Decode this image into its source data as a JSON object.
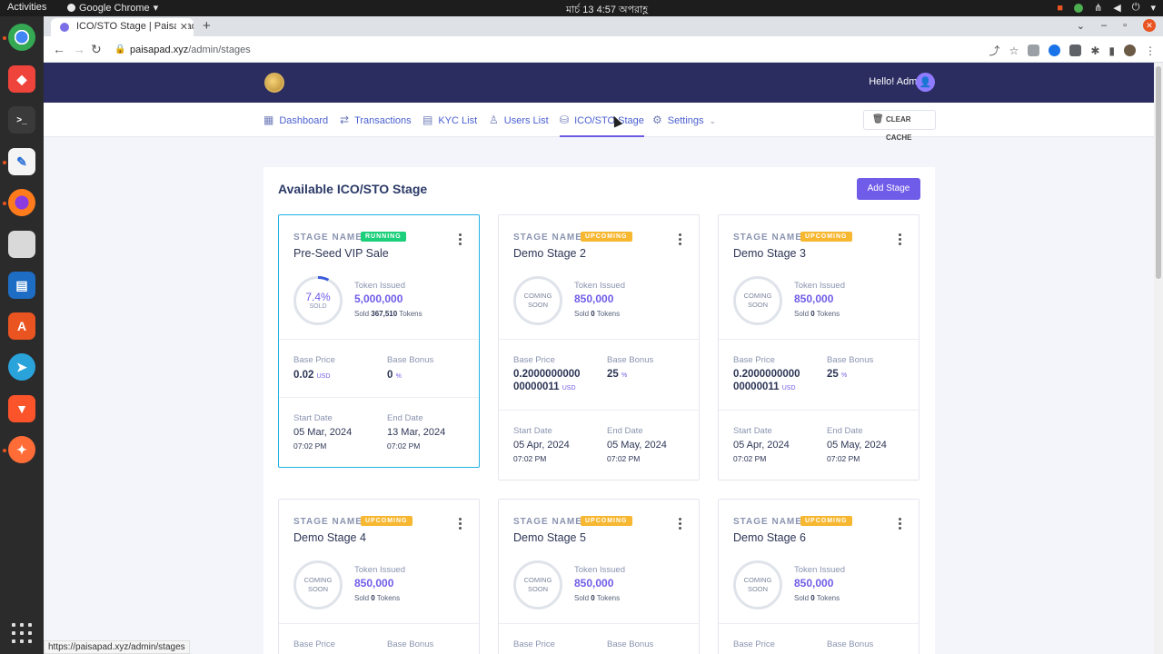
{
  "os": {
    "activities": "Activities",
    "app_name": "Google Chrome",
    "clock": "মার্চ 13  4:57 অপরাহ্ণ"
  },
  "browser": {
    "tab_title": "ICO/STO Stage | PaisaPad",
    "url_host": "paisapad.xyz",
    "url_path": "/admin/stages",
    "status_url": "https://paisapad.xyz/admin/stages"
  },
  "header": {
    "greeting": "Hello! Admin"
  },
  "menu": {
    "items": [
      {
        "label": "Dashboard",
        "icon": "grid-icon"
      },
      {
        "label": "Transactions",
        "icon": "exchange-icon"
      },
      {
        "label": "KYC List",
        "icon": "document-icon"
      },
      {
        "label": "Users List",
        "icon": "user-icon"
      },
      {
        "label": "ICO/STO Stage",
        "icon": "coins-icon",
        "active": true
      },
      {
        "label": "Settings",
        "icon": "gear-icon"
      }
    ],
    "clear_cache": "CLEAR CACHE"
  },
  "panel": {
    "title": "Available ICO/STO Stage",
    "add_button": "Add Stage",
    "stage_label": "STAGE NAME",
    "token_issued_label": "Token Issued",
    "base_price_label": "Base Price",
    "base_bonus_label": "Base Bonus",
    "start_date_label": "Start Date",
    "end_date_label": "End Date"
  },
  "stages": [
    {
      "name": "Pre-Seed VIP Sale",
      "status": "RUNNING",
      "sold_pct": "7.4%",
      "sold_word": "SOLD",
      "sold_fraction": 0.074,
      "token_issued": "5,000,000",
      "sold_prefix": "Sold",
      "sold_tokens": "367,510",
      "sold_suffix": "Tokens",
      "base_price": "0.02",
      "base_price_unit": "USD",
      "base_bonus": "0",
      "base_bonus_unit": "%",
      "start_date": "05 Mar, 2024",
      "start_time": "07:02 PM",
      "end_date": "13 Mar, 2024",
      "end_time": "07:02 PM"
    },
    {
      "name": "Demo Stage 2",
      "status": "UPCOMING",
      "soon_1": "COMING",
      "soon_2": "SOON",
      "token_issued": "850,000",
      "sold_prefix": "Sold",
      "sold_tokens": "0",
      "sold_suffix": "Tokens",
      "base_price_1": "0.2000000000",
      "base_price_2": "00000011",
      "base_price_unit": "USD",
      "base_bonus": "25",
      "base_bonus_unit": "%",
      "start_date": "05 Apr, 2024",
      "start_time": "07:02 PM",
      "end_date": "05 May, 2024",
      "end_time": "07:02 PM"
    },
    {
      "name": "Demo Stage 3",
      "status": "UPCOMING",
      "soon_1": "COMING",
      "soon_2": "SOON",
      "token_issued": "850,000",
      "sold_prefix": "Sold",
      "sold_tokens": "0",
      "sold_suffix": "Tokens",
      "base_price_1": "0.2000000000",
      "base_price_2": "00000011",
      "base_price_unit": "USD",
      "base_bonus": "25",
      "base_bonus_unit": "%",
      "start_date": "05 Apr, 2024",
      "start_time": "07:02 PM",
      "end_date": "05 May, 2024",
      "end_time": "07:02 PM"
    },
    {
      "name": "Demo Stage 4",
      "status": "UPCOMING",
      "soon_1": "COMING",
      "soon_2": "SOON",
      "token_issued": "850,000",
      "sold_prefix": "Sold",
      "sold_tokens": "0",
      "sold_suffix": "Tokens"
    },
    {
      "name": "Demo Stage 5",
      "status": "UPCOMING",
      "soon_1": "COMING",
      "soon_2": "SOON",
      "token_issued": "850,000",
      "sold_prefix": "Sold",
      "sold_tokens": "0",
      "sold_suffix": "Tokens"
    },
    {
      "name": "Demo Stage 6",
      "status": "UPCOMING",
      "soon_1": "COMING",
      "soon_2": "SOON",
      "token_issued": "850,000",
      "sold_prefix": "Sold",
      "sold_tokens": "0",
      "sold_suffix": "Tokens"
    }
  ],
  "colors": {
    "header_bg": "#2b2d61",
    "accent": "#6f5ce8",
    "running": "#1ccf7a",
    "upcoming": "#f7b731",
    "active_card_border": "#20b1e6"
  }
}
